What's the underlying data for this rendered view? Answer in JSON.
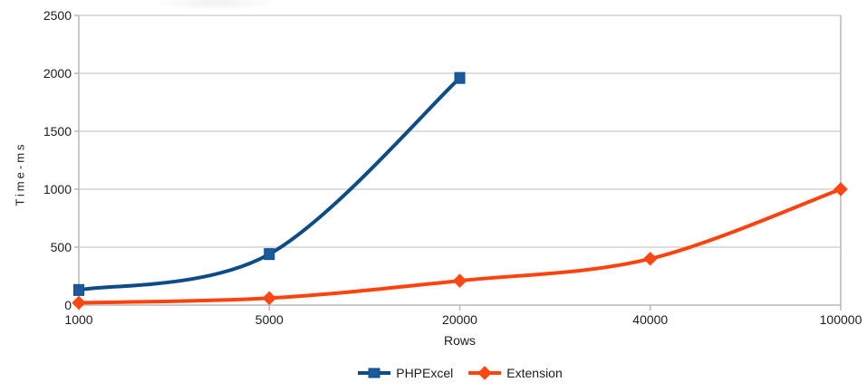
{
  "chart_data": {
    "type": "line",
    "title": "",
    "xlabel": "Rows",
    "ylabel": "Time-ms",
    "categories": [
      "1000",
      "5000",
      "20000",
      "40000",
      "100000"
    ],
    "yticks": [
      0,
      500,
      1000,
      1500,
      2000,
      2500
    ],
    "ylim": [
      0,
      2500
    ],
    "grid": "horizontal-only",
    "legend_position": "bottom",
    "smoothing": true,
    "series": [
      {
        "name": "PHPExcel",
        "marker": "square",
        "color": "#0d4c87",
        "marker_fill": "#1b5a9c",
        "values": [
          130,
          440,
          1960,
          null,
          null
        ]
      },
      {
        "name": "Extension",
        "marker": "diamond",
        "color": "#ff420e",
        "marker_fill": "#ff4713",
        "values": [
          20,
          60,
          210,
          400,
          1000
        ]
      }
    ]
  },
  "colors": {
    "background": "#ffffff",
    "gridline": "#d3d3d3",
    "axis": "#b9b9b9",
    "text": "#1c1c1c"
  }
}
